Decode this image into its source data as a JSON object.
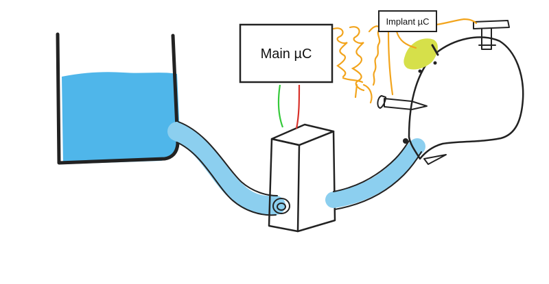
{
  "labels": {
    "main_controller": "Main µC",
    "implant_controller": "Implant µC"
  },
  "colors": {
    "water": "#4fb6ea",
    "tube": "#a9dcf5",
    "outline": "#222222",
    "wire_orange": "#f2a41c",
    "wire_green": "#35c93a",
    "wire_red": "#d8312a",
    "implant_pad": "#d6e04a",
    "head_fill": "#f4f4f4"
  },
  "icons": [
    "water-tank",
    "pump-box",
    "tube",
    "controller-box",
    "implant-pad",
    "needle",
    "head-outline"
  ]
}
